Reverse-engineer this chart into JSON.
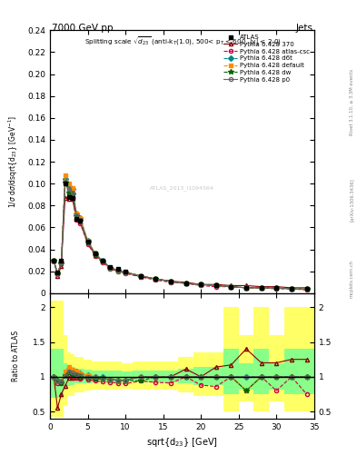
{
  "title": "7000 GeV pp",
  "title_right": "Jets",
  "xlim": [
    0,
    35
  ],
  "ylim_main": [
    0,
    0.24
  ],
  "ylim_ratio": [
    0.4,
    2.2
  ],
  "x_data": [
    0.5,
    1.0,
    1.5,
    2.0,
    2.5,
    3.0,
    3.5,
    4.0,
    5.0,
    6.0,
    7.0,
    8.0,
    9.0,
    10.0,
    12.0,
    14.0,
    16.0,
    18.0,
    20.0,
    22.0,
    24.0,
    26.0,
    28.0,
    30.0,
    32.0,
    34.0
  ],
  "y_atlas": [
    0.03,
    0.019,
    0.03,
    0.1,
    0.088,
    0.087,
    0.068,
    0.066,
    0.047,
    0.036,
    0.03,
    0.024,
    0.022,
    0.02,
    0.016,
    0.013,
    0.011,
    0.009,
    0.008,
    0.007,
    0.006,
    0.005,
    0.005,
    0.005,
    0.004,
    0.004
  ],
  "y_370": [
    0.03,
    0.016,
    0.025,
    0.087,
    0.086,
    0.086,
    0.068,
    0.065,
    0.046,
    0.035,
    0.029,
    0.023,
    0.021,
    0.019,
    0.016,
    0.013,
    0.011,
    0.01,
    0.008,
    0.008,
    0.007,
    0.007,
    0.006,
    0.006,
    0.005,
    0.005
  ],
  "y_atlascsc": [
    0.03,
    0.017,
    0.027,
    0.103,
    0.091,
    0.087,
    0.067,
    0.064,
    0.045,
    0.034,
    0.028,
    0.022,
    0.02,
    0.018,
    0.015,
    0.012,
    0.01,
    0.009,
    0.007,
    0.006,
    0.006,
    0.005,
    0.005,
    0.004,
    0.004,
    0.003
  ],
  "y_d6t": [
    0.03,
    0.018,
    0.028,
    0.104,
    0.098,
    0.095,
    0.073,
    0.069,
    0.048,
    0.036,
    0.03,
    0.023,
    0.021,
    0.019,
    0.016,
    0.013,
    0.011,
    0.009,
    0.008,
    0.007,
    0.006,
    0.005,
    0.005,
    0.005,
    0.004,
    0.004
  ],
  "y_default": [
    0.03,
    0.018,
    0.028,
    0.108,
    0.1,
    0.096,
    0.073,
    0.069,
    0.048,
    0.036,
    0.029,
    0.023,
    0.021,
    0.019,
    0.016,
    0.013,
    0.011,
    0.009,
    0.008,
    0.007,
    0.006,
    0.005,
    0.005,
    0.005,
    0.004,
    0.004
  ],
  "y_dw": [
    0.03,
    0.018,
    0.027,
    0.101,
    0.092,
    0.09,
    0.07,
    0.066,
    0.046,
    0.035,
    0.029,
    0.023,
    0.021,
    0.019,
    0.015,
    0.013,
    0.011,
    0.009,
    0.008,
    0.007,
    0.006,
    0.005,
    0.005,
    0.005,
    0.004,
    0.004
  ],
  "y_p0": [
    0.03,
    0.018,
    0.028,
    0.101,
    0.095,
    0.092,
    0.071,
    0.067,
    0.047,
    0.036,
    0.029,
    0.023,
    0.021,
    0.019,
    0.016,
    0.013,
    0.011,
    0.009,
    0.008,
    0.007,
    0.006,
    0.005,
    0.005,
    0.005,
    0.004,
    0.004
  ],
  "ratio_370": [
    1.0,
    0.55,
    0.75,
    0.87,
    0.98,
    0.99,
    1.0,
    0.99,
    0.98,
    0.97,
    0.97,
    0.96,
    0.95,
    0.95,
    1.0,
    1.0,
    1.0,
    1.11,
    1.0,
    1.14,
    1.17,
    1.4,
    1.2,
    1.2,
    1.25,
    1.25
  ],
  "ratio_atlascsc": [
    1.0,
    0.9,
    0.9,
    1.03,
    1.03,
    1.0,
    0.99,
    0.97,
    0.96,
    0.94,
    0.93,
    0.92,
    0.91,
    0.9,
    0.94,
    0.92,
    0.91,
    1.0,
    0.88,
    0.86,
    1.0,
    0.8,
    1.0,
    0.8,
    1.0,
    0.75
  ],
  "ratio_d6t": [
    1.0,
    0.95,
    0.93,
    1.04,
    1.11,
    1.09,
    1.07,
    1.05,
    1.02,
    1.0,
    1.0,
    0.96,
    0.95,
    0.95,
    1.0,
    1.0,
    1.0,
    1.0,
    1.0,
    1.0,
    1.0,
    1.0,
    1.0,
    1.0,
    1.0,
    1.0
  ],
  "ratio_default": [
    1.0,
    0.95,
    0.93,
    1.08,
    1.14,
    1.1,
    1.07,
    1.05,
    1.02,
    1.0,
    0.97,
    0.96,
    0.95,
    0.95,
    1.0,
    1.0,
    1.0,
    1.0,
    1.0,
    1.0,
    1.0,
    0.8,
    1.0,
    1.0,
    1.0,
    1.0
  ],
  "ratio_dw": [
    1.0,
    0.95,
    0.9,
    1.01,
    1.05,
    1.03,
    1.03,
    1.0,
    0.98,
    0.97,
    0.97,
    0.96,
    0.95,
    0.95,
    0.94,
    1.0,
    1.0,
    1.0,
    1.0,
    1.0,
    1.0,
    0.8,
    1.0,
    1.0,
    1.0,
    1.0
  ],
  "ratio_p0": [
    1.0,
    0.95,
    0.93,
    1.01,
    1.08,
    1.06,
    1.04,
    1.02,
    1.0,
    1.0,
    0.97,
    0.96,
    0.95,
    0.95,
    1.0,
    1.0,
    1.0,
    1.0,
    1.0,
    1.0,
    1.0,
    1.0,
    1.0,
    1.0,
    1.0,
    1.0
  ],
  "color_atlas": "#000000",
  "color_370": "#8b0000",
  "color_atlascsc": "#cc0044",
  "color_d6t": "#008888",
  "color_default": "#ff8c00",
  "color_dw": "#006600",
  "color_p0": "#666666",
  "bg_yellow": "#ffff66",
  "bg_green": "#88ff88",
  "yticks_main": [
    0.0,
    0.02,
    0.04,
    0.06,
    0.08,
    0.1,
    0.12,
    0.14,
    0.16,
    0.18,
    0.2,
    0.22,
    0.24
  ],
  "yticks_ratio": [
    0.5,
    1.0,
    1.5,
    2.0
  ],
  "xticks": [
    0,
    5,
    10,
    15,
    20,
    25,
    30,
    35
  ],
  "watermark": "ATLAS_2013_I1094564",
  "right_label1": "Rivet 3.1.10, ≥ 3.3M events",
  "right_label2": "[arXiv:1306.3436]",
  "right_label3": "mcplots.cern.ch"
}
